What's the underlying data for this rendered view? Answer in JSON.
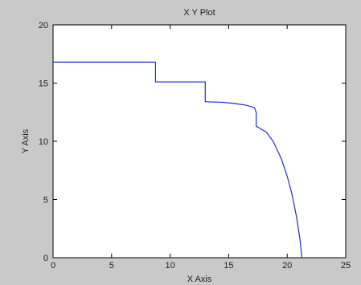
{
  "chart_data": {
    "type": "line",
    "title": "X Y Plot",
    "xlabel": "X Axis",
    "ylabel": "Y Axis",
    "xlim": [
      0,
      25
    ],
    "ylim": [
      0,
      20
    ],
    "xticks": [
      0,
      5,
      10,
      15,
      20,
      25
    ],
    "yticks": [
      0,
      5,
      10,
      15,
      20
    ],
    "grid": false,
    "series": [
      {
        "color": "#1f2bd6",
        "x": [
          0,
          8.75,
          8.75,
          13.0,
          13.0,
          14.5,
          15.5,
          16.5,
          17.2,
          17.35,
          17.35,
          18.2,
          18.8,
          19.5,
          20.0,
          20.4,
          20.8,
          21.1,
          21.25
        ],
        "y": [
          16.8,
          16.8,
          15.1,
          15.1,
          13.4,
          13.35,
          13.25,
          13.1,
          12.9,
          12.5,
          11.3,
          10.8,
          10.0,
          8.5,
          7.0,
          5.5,
          3.5,
          1.5,
          0
        ]
      }
    ]
  }
}
